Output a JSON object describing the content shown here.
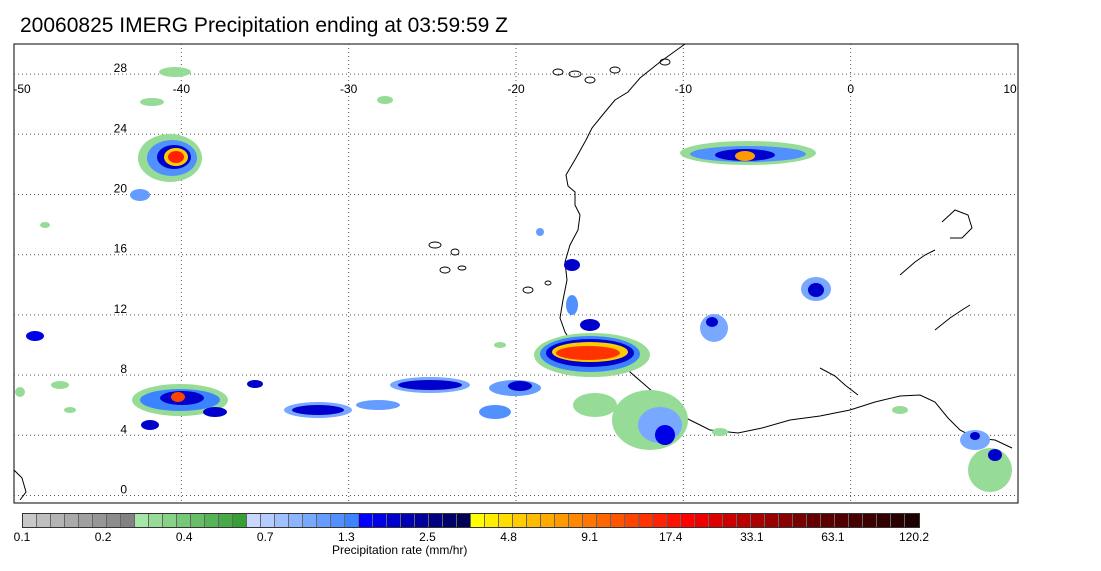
{
  "title": "20060825 IMERG Precipitation ending at 03:59:59 Z",
  "map": {
    "lon_labels": [
      "-50",
      "-40",
      "-30",
      "-20",
      "-10",
      "0",
      "10"
    ],
    "lat_labels": [
      "28",
      "24",
      "20",
      "16",
      "12",
      "8",
      "4",
      "0"
    ],
    "lon_values": [
      -50,
      -40,
      -30,
      -20,
      -10,
      0,
      10
    ],
    "lat_values": [
      28,
      24,
      20,
      16,
      12,
      8,
      4,
      0
    ],
    "lon_range": [
      -50,
      10
    ],
    "lat_range": [
      -0.5,
      30
    ],
    "gridlines": "dotted",
    "coastline_color": "#000000"
  },
  "colorbar": {
    "label": "Precipitation rate (mm/hr)",
    "tick_labels": [
      "0.1",
      "0.2",
      "0.4",
      "0.7",
      "1.3",
      "2.5",
      "4.8",
      "9.1",
      "17.4",
      "33.1",
      "63.1",
      "120.2"
    ],
    "colors": [
      "#c8c8c8",
      "#bebebe",
      "#b4b4b4",
      "#aaaaaa",
      "#a0a0a0",
      "#969696",
      "#8c8c8c",
      "#828282",
      "#a6e6a6",
      "#96dc96",
      "#86d286",
      "#76c876",
      "#66be66",
      "#56b456",
      "#46aa46",
      "#369f36",
      "#c8d8ff",
      "#b4ccff",
      "#a0c0ff",
      "#8cb4ff",
      "#78a8ff",
      "#649cff",
      "#5090ff",
      "#3c84ff",
      "#0000ff",
      "#0000e6",
      "#0000cc",
      "#0000b3",
      "#00009a",
      "#000080",
      "#00006a",
      "#000055",
      "#ffff00",
      "#ffee00",
      "#ffdd00",
      "#ffcc00",
      "#ffbb00",
      "#ffaa00",
      "#ff9900",
      "#ff8800",
      "#ff7700",
      "#ff6600",
      "#ff5500",
      "#ff4400",
      "#ff3300",
      "#ff2200",
      "#ff1100",
      "#ff0000",
      "#ee0000",
      "#dd0000",
      "#cc0000",
      "#bb0000",
      "#aa0000",
      "#990000",
      "#880000",
      "#770000",
      "#660000",
      "#5a0000",
      "#500000",
      "#460000",
      "#3c0000",
      "#320000",
      "#280000",
      "#1e0000"
    ]
  }
}
